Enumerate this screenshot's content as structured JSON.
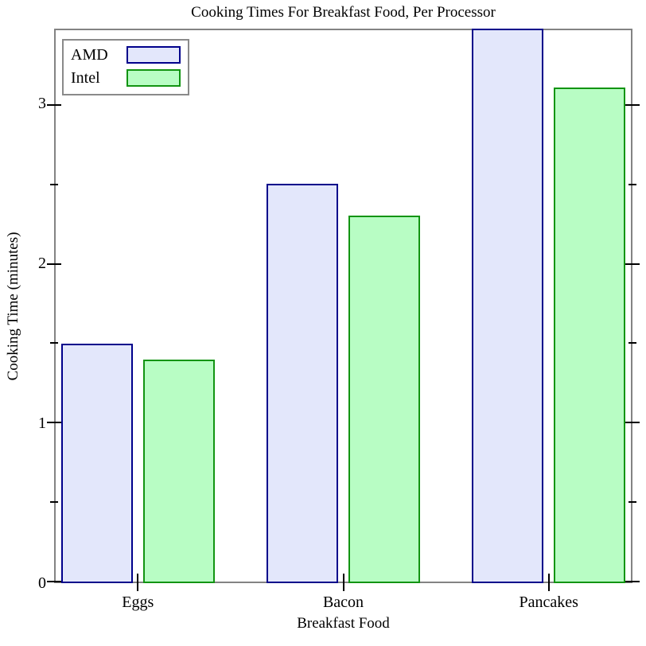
{
  "chart_data": {
    "type": "bar",
    "title": "Cooking Times For Breakfast Food, Per Processor",
    "xlabel": "Breakfast Food",
    "ylabel": "Cooking Time (minutes)",
    "categories": [
      "Eggs",
      "Bacon",
      "Pancakes"
    ],
    "series": [
      {
        "name": "AMD",
        "values": [
          1.5,
          2.5,
          3.5
        ],
        "fill": "#E3E7FB",
        "border": "#00008B"
      },
      {
        "name": "Intel",
        "values": [
          1.4,
          2.3,
          3.1
        ],
        "fill": "#B8FDC4",
        "border": "#129412"
      }
    ],
    "ylim": [
      0,
      3.47
    ],
    "y_major_ticks": [
      0,
      1,
      2,
      3
    ],
    "y_tick_labels": [
      "0",
      "1",
      "2",
      "3"
    ],
    "y_minor_ticks": [
      0.5,
      1.5,
      2.5
    ],
    "legend_position": "top-left",
    "legend_order": [
      "AMD",
      "Intel"
    ],
    "grid": false,
    "frame_color": "#838383",
    "tick_color": "#000000"
  }
}
